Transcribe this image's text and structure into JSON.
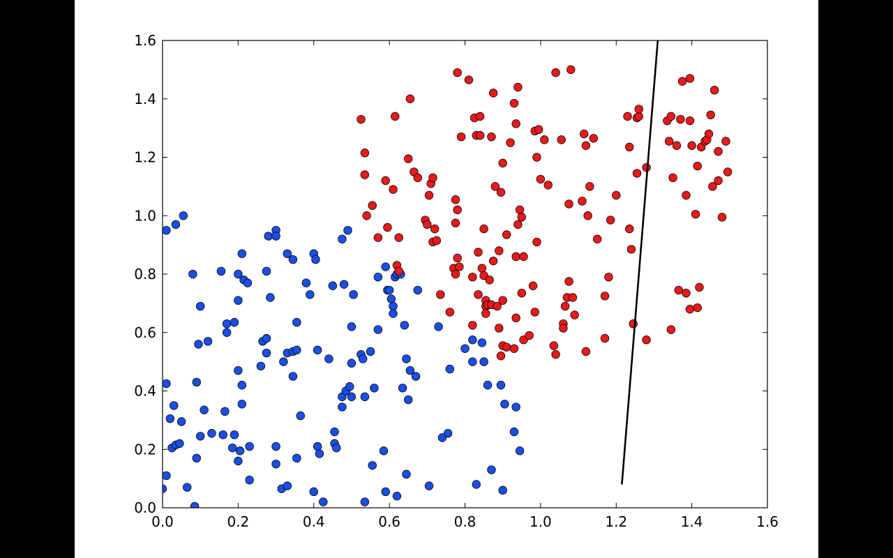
{
  "chart_data": {
    "type": "scatter",
    "title": "",
    "xlabel": "",
    "ylabel": "",
    "xlim": [
      0.0,
      1.6
    ],
    "ylim": [
      0.0,
      1.6
    ],
    "xticks": [
      "0.0",
      "0.2",
      "0.4",
      "0.6",
      "0.8",
      "1.0",
      "1.2",
      "1.4",
      "1.6"
    ],
    "yticks": [
      "0.0",
      "0.2",
      "0.4",
      "0.6",
      "0.8",
      "1.0",
      "1.2",
      "1.4",
      "1.6"
    ],
    "grid": false,
    "legend": "none",
    "series": [
      {
        "color": "#1a4fe6",
        "points": [
          [
            0.01,
            0.95
          ],
          [
            0.035,
            0.97
          ],
          [
            0.055,
            1.0
          ],
          [
            0.08,
            0.8
          ],
          [
            0.1,
            0.69
          ],
          [
            0.095,
            0.56
          ],
          [
            0.12,
            0.57
          ],
          [
            0.155,
            0.81
          ],
          [
            0.17,
            0.6
          ],
          [
            0.17,
            0.63
          ],
          [
            0.19,
            0.635
          ],
          [
            0.2,
            0.71
          ],
          [
            0.2,
            0.8
          ],
          [
            0.21,
            0.87
          ],
          [
            0.215,
            0.78
          ],
          [
            0.225,
            0.77
          ],
          [
            0.2,
            0.47
          ],
          [
            0.21,
            0.42
          ],
          [
            0.21,
            0.355
          ],
          [
            0.16,
            0.25
          ],
          [
            0.165,
            0.33
          ],
          [
            0.185,
            0.205
          ],
          [
            0.19,
            0.25
          ],
          [
            0.2,
            0.16
          ],
          [
            0.205,
            0.195
          ],
          [
            0.23,
            0.21
          ],
          [
            0.23,
            0.095
          ],
          [
            0.26,
            0.485
          ],
          [
            0.265,
            0.57
          ],
          [
            0.275,
            0.58
          ],
          [
            0.275,
            0.53
          ],
          [
            0.285,
            0.72
          ],
          [
            0.275,
            0.81
          ],
          [
            0.28,
            0.93
          ],
          [
            0.3,
            0.95
          ],
          [
            0.3,
            0.93
          ],
          [
            0.33,
            0.87
          ],
          [
            0.345,
            0.85
          ],
          [
            0.32,
            0.5
          ],
          [
            0.33,
            0.53
          ],
          [
            0.345,
            0.535
          ],
          [
            0.355,
            0.54
          ],
          [
            0.355,
            0.635
          ],
          [
            0.345,
            0.45
          ],
          [
            0.3,
            0.21
          ],
          [
            0.3,
            0.15
          ],
          [
            0.315,
            0.065
          ],
          [
            0.33,
            0.075
          ],
          [
            0.355,
            0.17
          ],
          [
            0.365,
            0.315
          ],
          [
            0.38,
            0.77
          ],
          [
            0.39,
            0.73
          ],
          [
            0.4,
            0.87
          ],
          [
            0.405,
            0.85
          ],
          [
            0.41,
            0.54
          ],
          [
            0.41,
            0.21
          ],
          [
            0.415,
            0.185
          ],
          [
            0.4,
            0.055
          ],
          [
            0.425,
            0.02
          ],
          [
            0.44,
            0.51
          ],
          [
            0.45,
            0.76
          ],
          [
            0.455,
            0.26
          ],
          [
            0.455,
            0.22
          ],
          [
            0.46,
            0.205
          ],
          [
            0.475,
            0.345
          ],
          [
            0.475,
            0.38
          ],
          [
            0.475,
            0.92
          ],
          [
            0.48,
            0.765
          ],
          [
            0.485,
            0.4
          ],
          [
            0.49,
            0.95
          ],
          [
            0.495,
            0.415
          ],
          [
            0.5,
            0.38
          ],
          [
            0.5,
            0.62
          ],
          [
            0.5,
            0.495
          ],
          [
            0.505,
            0.73
          ],
          [
            0.525,
            0.525
          ],
          [
            0.53,
            0.51
          ],
          [
            0.535,
            0.38
          ],
          [
            0.535,
            0.02
          ],
          [
            0.55,
            0.535
          ],
          [
            0.555,
            0.145
          ],
          [
            0.56,
            0.41
          ],
          [
            0.57,
            0.61
          ],
          [
            0.57,
            0.79
          ],
          [
            0.585,
            0.195
          ],
          [
            0.59,
            0.055
          ],
          [
            0.59,
            0.825
          ],
          [
            0.595,
            0.745
          ],
          [
            0.6,
            0.745
          ],
          [
            0.605,
            0.715
          ],
          [
            0.61,
            0.69
          ],
          [
            0.61,
            0.665
          ],
          [
            0.615,
            0.79
          ],
          [
            0.62,
            0.8
          ],
          [
            0.63,
            0.8
          ],
          [
            0.635,
            0.41
          ],
          [
            0.64,
            0.625
          ],
          [
            0.645,
            0.51
          ],
          [
            0.645,
            0.115
          ],
          [
            0.65,
            0.37
          ],
          [
            0.655,
            0.47
          ],
          [
            0.67,
            0.45
          ],
          [
            0.675,
            0.745
          ],
          [
            0.62,
            0.04
          ],
          [
            0.705,
            0.075
          ],
          [
            0.73,
            0.62
          ],
          [
            0.74,
            0.24
          ],
          [
            0.755,
            0.255
          ],
          [
            0.76,
            0.475
          ],
          [
            0.8,
            0.545
          ],
          [
            0.82,
            0.575
          ],
          [
            0.82,
            0.5
          ],
          [
            0.83,
            0.08
          ],
          [
            0.845,
            0.565
          ],
          [
            0.85,
            0.5
          ],
          [
            0.86,
            0.42
          ],
          [
            0.87,
            0.13
          ],
          [
            0.895,
            0.42
          ],
          [
            0.9,
            0.06
          ],
          [
            0.905,
            0.355
          ],
          [
            0.93,
            0.26
          ],
          [
            0.935,
            0.345
          ],
          [
            0.945,
            0.195
          ],
          [
            0.0,
            0.065
          ],
          [
            0.01,
            0.11
          ],
          [
            0.01,
            0.425
          ],
          [
            0.02,
            0.305
          ],
          [
            0.025,
            0.205
          ],
          [
            0.03,
            0.35
          ],
          [
            0.035,
            0.215
          ],
          [
            0.045,
            0.22
          ],
          [
            0.05,
            0.295
          ],
          [
            0.065,
            0.07
          ],
          [
            0.085,
            0.005
          ],
          [
            0.09,
            0.17
          ],
          [
            0.09,
            0.43
          ],
          [
            0.1,
            0.245
          ],
          [
            0.11,
            0.335
          ],
          [
            0.13,
            0.255
          ]
        ]
      },
      {
        "color": "#e81a1a",
        "points": [
          [
            0.525,
            1.33
          ],
          [
            0.535,
            1.215
          ],
          [
            0.535,
            1.14
          ],
          [
            0.54,
            1.0
          ],
          [
            0.555,
            1.035
          ],
          [
            0.57,
            0.925
          ],
          [
            0.59,
            1.12
          ],
          [
            0.595,
            0.96
          ],
          [
            0.61,
            1.09
          ],
          [
            0.615,
            1.34
          ],
          [
            0.62,
            0.83
          ],
          [
            0.625,
            0.81
          ],
          [
            0.625,
            0.925
          ],
          [
            0.65,
            1.195
          ],
          [
            0.655,
            1.4
          ],
          [
            0.665,
            1.15
          ],
          [
            0.675,
            1.13
          ],
          [
            0.695,
            0.985
          ],
          [
            0.7,
            0.97
          ],
          [
            0.705,
            1.07
          ],
          [
            0.71,
            1.11
          ],
          [
            0.715,
            1.13
          ],
          [
            0.715,
            0.91
          ],
          [
            0.72,
            0.955
          ],
          [
            0.725,
            0.915
          ],
          [
            0.735,
            0.73
          ],
          [
            0.76,
            0.67
          ],
          [
            0.77,
            0.82
          ],
          [
            0.775,
            0.8
          ],
          [
            0.775,
            0.975
          ],
          [
            0.775,
            1.055
          ],
          [
            0.78,
            1.02
          ],
          [
            0.78,
            0.855
          ],
          [
            0.78,
            1.49
          ],
          [
            0.785,
            0.825
          ],
          [
            0.79,
            1.27
          ],
          [
            0.81,
            1.465
          ],
          [
            0.82,
            0.79
          ],
          [
            0.82,
            0.625
          ],
          [
            0.825,
            1.335
          ],
          [
            0.83,
            1.275
          ],
          [
            0.835,
            0.875
          ],
          [
            0.835,
            0.73
          ],
          [
            0.84,
            1.34
          ],
          [
            0.84,
            1.275
          ],
          [
            0.845,
            0.82
          ],
          [
            0.85,
            0.795
          ],
          [
            0.85,
            0.955
          ],
          [
            0.855,
            0.71
          ],
          [
            0.855,
            0.69
          ],
          [
            0.855,
            0.665
          ],
          [
            0.86,
            0.695
          ],
          [
            0.865,
            0.78
          ],
          [
            0.87,
            0.695
          ],
          [
            0.87,
            1.27
          ],
          [
            0.875,
            0.845
          ],
          [
            0.875,
            1.42
          ],
          [
            0.88,
            1.1
          ],
          [
            0.885,
            0.69
          ],
          [
            0.89,
            0.615
          ],
          [
            0.89,
            0.88
          ],
          [
            0.895,
            1.08
          ],
          [
            0.895,
            0.52
          ],
          [
            0.9,
            0.555
          ],
          [
            0.9,
            1.18
          ],
          [
            0.9,
            0.71
          ],
          [
            0.91,
            0.55
          ],
          [
            0.91,
            0.935
          ],
          [
            0.92,
            1.25
          ],
          [
            0.93,
            1.385
          ],
          [
            0.93,
            0.545
          ],
          [
            0.935,
            1.315
          ],
          [
            0.935,
            0.65
          ],
          [
            0.935,
            0.86
          ],
          [
            0.94,
            1.44
          ],
          [
            0.94,
            0.97
          ],
          [
            0.945,
            1.02
          ],
          [
            0.95,
            0.995
          ],
          [
            0.95,
            0.735
          ],
          [
            0.955,
            0.86
          ],
          [
            0.955,
            0.575
          ],
          [
            0.97,
            0.59
          ],
          [
            0.98,
            0.76
          ],
          [
            0.985,
            0.67
          ],
          [
            0.985,
            1.29
          ],
          [
            0.99,
            1.2
          ],
          [
            0.99,
            0.91
          ],
          [
            0.995,
            1.295
          ],
          [
            1.0,
            1.125
          ],
          [
            1.01,
            1.26
          ],
          [
            1.02,
            1.105
          ],
          [
            1.035,
            0.555
          ],
          [
            1.04,
            0.525
          ],
          [
            1.04,
            1.49
          ],
          [
            1.055,
            1.26
          ],
          [
            1.06,
            0.63
          ],
          [
            1.06,
            0.615
          ],
          [
            1.065,
            0.69
          ],
          [
            1.07,
            0.72
          ],
          [
            1.075,
            0.775
          ],
          [
            1.075,
            1.04
          ],
          [
            1.08,
            1.5
          ],
          [
            1.085,
            0.72
          ],
          [
            1.09,
            0.66
          ],
          [
            1.11,
            1.05
          ],
          [
            1.115,
            1.28
          ],
          [
            1.12,
            0.535
          ],
          [
            1.12,
            1.24
          ],
          [
            1.125,
            1.0
          ],
          [
            1.13,
            1.1
          ],
          [
            1.14,
            1.265
          ],
          [
            1.15,
            0.92
          ],
          [
            1.17,
            0.725
          ],
          [
            1.17,
            0.58
          ],
          [
            1.18,
            0.79
          ],
          [
            1.185,
            0.985
          ],
          [
            1.2,
            1.07
          ],
          [
            1.23,
            1.34
          ],
          [
            1.235,
            1.235
          ],
          [
            1.235,
            0.955
          ],
          [
            1.24,
            0.885
          ],
          [
            1.245,
            0.63
          ],
          [
            1.255,
            1.145
          ],
          [
            1.255,
            1.335
          ],
          [
            1.26,
            1.34
          ],
          [
            1.26,
            1.365
          ],
          [
            1.28,
            0.575
          ],
          [
            1.28,
            1.165
          ],
          [
            1.335,
            1.325
          ],
          [
            1.34,
            1.255
          ],
          [
            1.345,
            1.34
          ],
          [
            1.345,
            0.61
          ],
          [
            1.35,
            1.13
          ],
          [
            1.36,
            1.24
          ],
          [
            1.365,
            0.745
          ],
          [
            1.37,
            1.33
          ],
          [
            1.375,
            1.46
          ],
          [
            1.385,
            0.735
          ],
          [
            1.385,
            1.07
          ],
          [
            1.395,
            0.68
          ],
          [
            1.395,
            1.325
          ],
          [
            1.395,
            1.47
          ],
          [
            1.4,
            1.24
          ],
          [
            1.41,
            1.005
          ],
          [
            1.415,
            0.685
          ],
          [
            1.415,
            1.17
          ],
          [
            1.42,
            0.755
          ],
          [
            1.425,
            1.235
          ],
          [
            1.435,
            1.255
          ],
          [
            1.44,
            1.26
          ],
          [
            1.445,
            1.28
          ],
          [
            1.45,
            1.345
          ],
          [
            1.455,
            1.1
          ],
          [
            1.46,
            1.43
          ],
          [
            1.47,
            1.22
          ],
          [
            1.47,
            1.12
          ],
          [
            1.48,
            0.995
          ],
          [
            1.49,
            1.255
          ],
          [
            1.495,
            1.15
          ]
        ]
      },
      {
        "kind": "line",
        "color": "#000000",
        "points": [
          [
            1.215,
            0.08
          ],
          [
            1.31,
            1.6
          ]
        ]
      }
    ]
  }
}
